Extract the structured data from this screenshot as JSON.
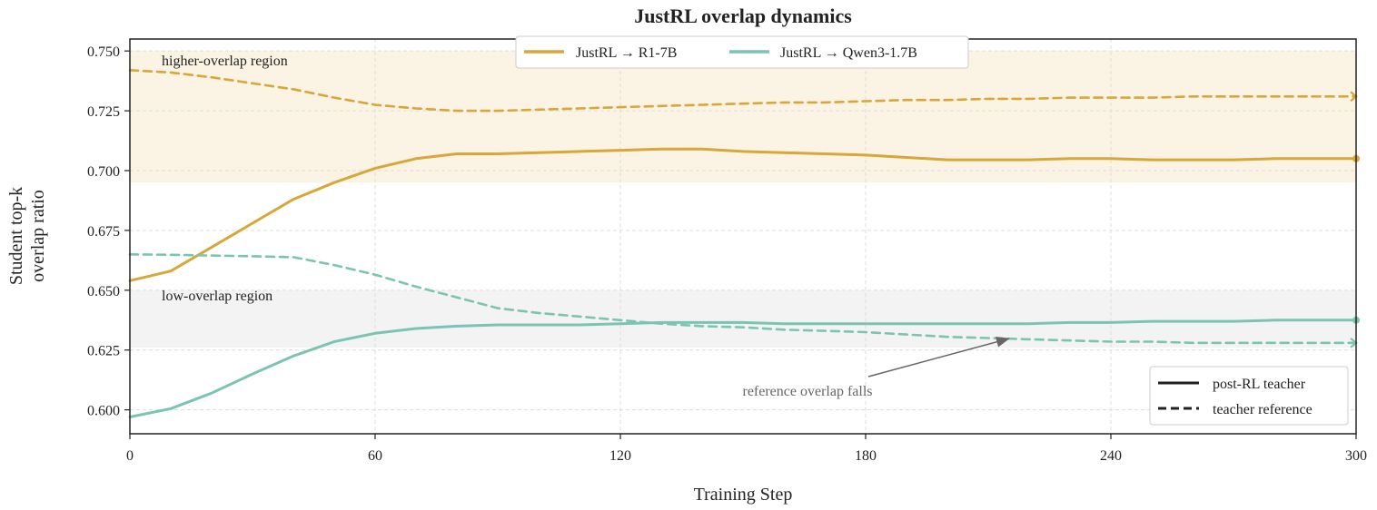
{
  "chart_data": {
    "type": "line",
    "title": "JustRL overlap dynamics",
    "xlabel": "Training Step",
    "ylabel_line1": "Student top-k",
    "ylabel_line2": "overlap ratio",
    "xlim": [
      0,
      300
    ],
    "ylim": [
      0.59,
      0.755
    ],
    "xticks": [
      "0",
      "60",
      "120",
      "180",
      "240",
      "300"
    ],
    "xtick_values": [
      0,
      60,
      120,
      180,
      240,
      300
    ],
    "yticks": [
      "0.600",
      "0.625",
      "0.650",
      "0.675",
      "0.700",
      "0.725",
      "0.750"
    ],
    "ytick_values": [
      0.6,
      0.625,
      0.65,
      0.675,
      0.7,
      0.725,
      0.75
    ],
    "grid": true,
    "series": [
      {
        "name": "JustRL → R1-7B",
        "style": "solid",
        "color": "#D9A63A",
        "x": [
          0,
          10,
          20,
          30,
          40,
          50,
          60,
          70,
          80,
          90,
          100,
          110,
          120,
          130,
          140,
          150,
          160,
          170,
          180,
          190,
          200,
          210,
          220,
          230,
          240,
          250,
          260,
          270,
          280,
          290,
          300
        ],
        "y": [
          0.654,
          0.658,
          0.668,
          0.678,
          0.688,
          0.695,
          0.701,
          0.705,
          0.707,
          0.707,
          0.7075,
          0.708,
          0.7085,
          0.709,
          0.709,
          0.708,
          0.7075,
          0.707,
          0.7065,
          0.7055,
          0.7045,
          0.7045,
          0.7045,
          0.705,
          0.705,
          0.7045,
          0.7045,
          0.7045,
          0.705,
          0.705,
          0.705
        ]
      },
      {
        "name": "",
        "style": "dashed",
        "color": "#D9A63A",
        "x": [
          0,
          10,
          20,
          30,
          40,
          50,
          60,
          70,
          80,
          90,
          100,
          110,
          120,
          130,
          140,
          150,
          160,
          170,
          180,
          190,
          200,
          210,
          220,
          230,
          240,
          250,
          260,
          270,
          280,
          290,
          300
        ],
        "y": [
          0.742,
          0.741,
          0.739,
          0.7365,
          0.734,
          0.7305,
          0.7275,
          0.726,
          0.725,
          0.725,
          0.7255,
          0.726,
          0.7265,
          0.727,
          0.7275,
          0.728,
          0.7285,
          0.7285,
          0.729,
          0.7295,
          0.7295,
          0.73,
          0.73,
          0.7305,
          0.7305,
          0.7305,
          0.731,
          0.731,
          0.731,
          0.731,
          0.731
        ]
      },
      {
        "name": "JustRL → Qwen3-1.7B",
        "style": "solid",
        "color": "#7CC4B2",
        "x": [
          0,
          10,
          20,
          30,
          40,
          50,
          60,
          70,
          80,
          90,
          100,
          110,
          120,
          130,
          140,
          150,
          160,
          170,
          180,
          190,
          200,
          210,
          220,
          230,
          240,
          250,
          260,
          270,
          280,
          290,
          300
        ],
        "y": [
          0.597,
          0.6005,
          0.607,
          0.615,
          0.6225,
          0.6285,
          0.632,
          0.634,
          0.635,
          0.6355,
          0.6355,
          0.6355,
          0.636,
          0.6365,
          0.6365,
          0.6365,
          0.636,
          0.636,
          0.636,
          0.636,
          0.636,
          0.636,
          0.636,
          0.6365,
          0.6365,
          0.637,
          0.637,
          0.637,
          0.6375,
          0.6375,
          0.6375
        ]
      },
      {
        "name": "",
        "style": "dashed",
        "color": "#7CC4B2",
        "x": [
          0,
          10,
          20,
          30,
          40,
          50,
          60,
          70,
          80,
          90,
          100,
          110,
          120,
          130,
          140,
          150,
          160,
          170,
          180,
          190,
          200,
          210,
          220,
          230,
          240,
          250,
          260,
          270,
          280,
          290,
          300
        ],
        "y": [
          0.665,
          0.6648,
          0.6645,
          0.6642,
          0.6638,
          0.6605,
          0.6565,
          0.6515,
          0.647,
          0.6425,
          0.6405,
          0.639,
          0.6375,
          0.636,
          0.635,
          0.6345,
          0.6335,
          0.633,
          0.6325,
          0.6315,
          0.6305,
          0.63,
          0.6295,
          0.629,
          0.6285,
          0.6285,
          0.628,
          0.628,
          0.628,
          0.628,
          0.628
        ]
      }
    ],
    "regions": [
      {
        "label": "higher-overlap region",
        "y_range": [
          0.695,
          0.75
        ],
        "color": "#FBF4E4",
        "text_color": "#9C7A22"
      },
      {
        "label": "low-overlap region",
        "y_range": [
          0.626,
          0.65
        ],
        "color": "#F3F3F3",
        "text_color": "#777777"
      }
    ],
    "annotation": {
      "text": "reference overlap falls",
      "target_x": 215,
      "target_y": 0.629
    },
    "legend_series": {
      "placement": "top-center",
      "entries": [
        "JustRL → R1-7B",
        "JustRL → Qwen3-1.7B"
      ]
    },
    "legend_style": {
      "placement": "bottom-right",
      "entries": [
        "post-RL teacher",
        "teacher reference"
      ]
    }
  }
}
